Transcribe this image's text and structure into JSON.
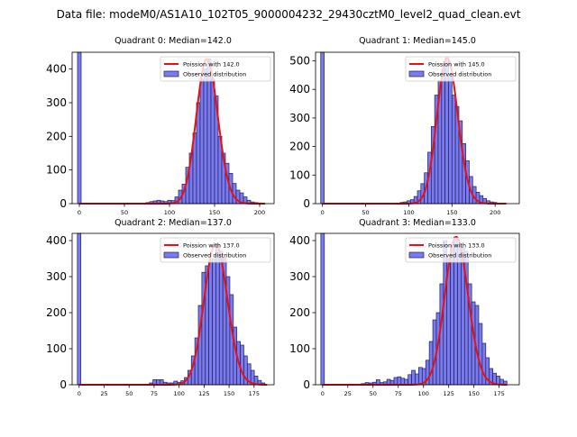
{
  "suptitle": "Data file: modeM0/AS1A10_102T05_9000004232_29430cztM0_level2_quad_clean.evt",
  "colors": {
    "bar_fill": "#7b7bf0",
    "bar_edge": "#1f1f5a",
    "curve": "#e81010"
  },
  "chart_data": [
    {
      "type": "bar",
      "title": "Quadrant 0: Median=142.0",
      "xlim": [
        -8,
        216
      ],
      "ylim": [
        0,
        450
      ],
      "xticks": [
        0,
        50,
        100,
        150,
        200
      ],
      "yticks": [
        0,
        100,
        200,
        300,
        400
      ],
      "bin_width": 4,
      "spike": {
        "x": 0,
        "value": 450
      },
      "bins": [
        [
          76,
          3
        ],
        [
          80,
          6
        ],
        [
          84,
          8
        ],
        [
          88,
          10
        ],
        [
          92,
          8
        ],
        [
          96,
          6
        ],
        [
          100,
          10
        ],
        [
          104,
          9
        ],
        [
          108,
          20
        ],
        [
          112,
          40
        ],
        [
          116,
          58
        ],
        [
          120,
          108
        ],
        [
          124,
          150
        ],
        [
          128,
          210
        ],
        [
          132,
          300
        ],
        [
          136,
          370
        ],
        [
          140,
          400
        ],
        [
          144,
          430
        ],
        [
          148,
          370
        ],
        [
          152,
          320
        ],
        [
          156,
          200
        ],
        [
          160,
          150
        ],
        [
          164,
          120
        ],
        [
          168,
          90
        ],
        [
          172,
          60
        ],
        [
          176,
          40
        ],
        [
          180,
          32
        ],
        [
          184,
          20
        ],
        [
          188,
          10
        ],
        [
          192,
          5
        ],
        [
          196,
          3
        ],
        [
          200,
          2
        ]
      ],
      "mean": 142.0,
      "curve_range": [
        0,
        206
      ],
      "legend": [
        "Poission with 142.0",
        "Observed distribution"
      ]
    },
    {
      "type": "bar",
      "title": "Quadrant 1: Median=145.0",
      "xlim": [
        -8,
        228
      ],
      "ylim": [
        0,
        530
      ],
      "xticks": [
        0,
        50,
        100,
        150,
        200
      ],
      "yticks": [
        0,
        100,
        200,
        300,
        400,
        500
      ],
      "bin_width": 4,
      "spike": {
        "x": 0,
        "value": 530
      },
      "bins": [
        [
          92,
          4
        ],
        [
          96,
          6
        ],
        [
          100,
          10
        ],
        [
          104,
          14
        ],
        [
          108,
          25
        ],
        [
          112,
          45
        ],
        [
          116,
          70
        ],
        [
          120,
          108
        ],
        [
          124,
          180
        ],
        [
          128,
          270
        ],
        [
          132,
          380
        ],
        [
          136,
          430
        ],
        [
          140,
          470
        ],
        [
          144,
          510
        ],
        [
          148,
          450
        ],
        [
          152,
          380
        ],
        [
          156,
          340
        ],
        [
          160,
          290
        ],
        [
          164,
          210
        ],
        [
          168,
          150
        ],
        [
          172,
          95
        ],
        [
          176,
          60
        ],
        [
          180,
          40
        ],
        [
          184,
          28
        ],
        [
          188,
          18
        ],
        [
          192,
          10
        ],
        [
          196,
          6
        ],
        [
          200,
          4
        ],
        [
          204,
          2
        ]
      ],
      "mean": 145.0,
      "curve_range": [
        0,
        213
      ],
      "legend": [
        "Poission with 145.0",
        "Observed distribution"
      ]
    },
    {
      "type": "bar",
      "title": "Quadrant 2: Median=137.0",
      "xlim": [
        -7,
        195
      ],
      "ylim": [
        0,
        420
      ],
      "xticks": [
        0,
        25,
        50,
        75,
        100,
        125,
        150,
        175
      ],
      "yticks": [
        0,
        100,
        200,
        300,
        400
      ],
      "bin_width": 3.5,
      "spike": {
        "x": 0,
        "value": 420
      },
      "bins": [
        [
          72,
          5
        ],
        [
          75.5,
          14
        ],
        [
          79,
          14
        ],
        [
          82.5,
          14
        ],
        [
          86,
          7
        ],
        [
          89.5,
          5
        ],
        [
          93,
          5
        ],
        [
          96.5,
          10
        ],
        [
          100,
          7
        ],
        [
          103.5,
          11
        ],
        [
          107,
          20
        ],
        [
          110.5,
          40
        ],
        [
          114,
          80
        ],
        [
          117.5,
          130
        ],
        [
          121,
          220
        ],
        [
          124.5,
          312
        ],
        [
          128,
          330
        ],
        [
          131.5,
          345
        ],
        [
          135,
          350
        ],
        [
          138.5,
          390
        ],
        [
          142,
          370
        ],
        [
          145.5,
          352
        ],
        [
          149,
          300
        ],
        [
          152.5,
          250
        ],
        [
          156,
          160
        ],
        [
          159.5,
          120
        ],
        [
          163,
          110
        ],
        [
          166.5,
          80
        ],
        [
          170,
          58
        ],
        [
          173.5,
          40
        ],
        [
          177,
          24
        ],
        [
          180.5,
          12
        ],
        [
          184,
          5
        ]
      ],
      "mean": 137.0,
      "curve_range": [
        0,
        188
      ],
      "legend": [
        "Poission with 137.0",
        "Observed distribution"
      ]
    },
    {
      "type": "bar",
      "title": "Quadrant 3: Median=133.0",
      "xlim": [
        -7,
        195
      ],
      "ylim": [
        0,
        420
      ],
      "xticks": [
        0,
        25,
        50,
        75,
        100,
        125,
        150,
        175
      ],
      "yticks": [
        0,
        100,
        200,
        300,
        400
      ],
      "bin_width": 3.5,
      "spike": {
        "x": 0,
        "value": 420
      },
      "bins": [
        [
          40,
          3
        ],
        [
          44,
          6
        ],
        [
          48,
          5
        ],
        [
          51.5,
          7
        ],
        [
          55,
          14
        ],
        [
          58.5,
          6
        ],
        [
          62,
          8
        ],
        [
          65.5,
          15
        ],
        [
          69,
          12
        ],
        [
          72.5,
          20
        ],
        [
          76,
          22
        ],
        [
          79.5,
          18
        ],
        [
          83,
          15
        ],
        [
          86.5,
          28
        ],
        [
          90,
          40
        ],
        [
          93.5,
          30
        ],
        [
          97,
          48
        ],
        [
          100.5,
          45
        ],
        [
          104,
          68
        ],
        [
          107.5,
          120
        ],
        [
          111,
          180
        ],
        [
          114.5,
          200
        ],
        [
          118,
          280
        ],
        [
          121.5,
          400
        ],
        [
          125,
          350
        ],
        [
          128.5,
          388
        ],
        [
          132,
          410
        ],
        [
          135.5,
          390
        ],
        [
          139,
          380
        ],
        [
          142.5,
          370
        ],
        [
          146,
          280
        ],
        [
          149.5,
          230
        ],
        [
          153,
          220
        ],
        [
          156.5,
          170
        ],
        [
          160,
          115
        ],
        [
          163.5,
          75
        ],
        [
          167,
          45
        ],
        [
          170.5,
          32
        ],
        [
          174,
          24
        ],
        [
          177.5,
          15
        ],
        [
          181,
          10
        ]
      ],
      "mean": 133.0,
      "curve_range": [
        0,
        183
      ],
      "legend": [
        "Poission with 133.0",
        "Observed distribution"
      ]
    }
  ]
}
